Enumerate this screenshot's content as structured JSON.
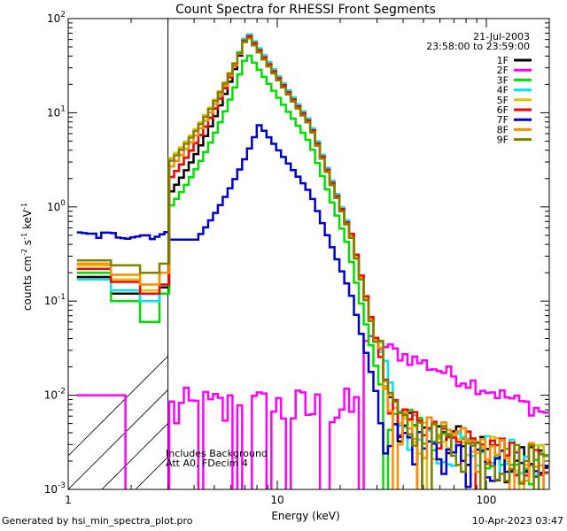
{
  "chart_data": {
    "type": "line",
    "title": "Count Spectra for RHESSI Front Segments",
    "xlabel": "Energy (keV)",
    "ylabel": "counts cm-2 s-1 keV-1",
    "xscale": "log",
    "yscale": "log",
    "xlim": [
      1,
      200
    ],
    "ylim": [
      0.001,
      100
    ],
    "x_ticks": [
      {
        "value": 1,
        "label": "1"
      },
      {
        "value": 10,
        "label": "10"
      },
      {
        "value": 100,
        "label": "100"
      }
    ],
    "y_ticks": [
      {
        "value": 0.001,
        "base": "10",
        "exp": "-3"
      },
      {
        "value": 0.01,
        "base": "10",
        "exp": "-2"
      },
      {
        "value": 0.1,
        "base": "10",
        "exp": "-1"
      },
      {
        "value": 1,
        "base": "10",
        "exp": "0"
      },
      {
        "value": 10,
        "base": "10",
        "exp": "1"
      },
      {
        "value": 100,
        "base": "10",
        "exp": "2"
      }
    ],
    "date": "21-Jul-2003",
    "time_range": "23:58:00 to 23:59:00",
    "hatched_region": [
      1,
      3
    ],
    "annotations": [
      "Includes Background",
      "Att A0, FDecim 4"
    ],
    "legend_position": "top-right",
    "series": [
      {
        "name": "1F",
        "color": "#000000",
        "y_lo": 0.07,
        "ylow": [
          0.18,
          0.12,
          0.1,
          0.14
        ],
        "peak_mult": 1.0,
        "high_mult": 1.0
      },
      {
        "name": "2F",
        "color": "#ff00ff",
        "kind": "background"
      },
      {
        "name": "3F",
        "color": "#00e000",
        "y_lo": 0.05,
        "ylow": [
          0.2,
          0.1,
          0.06,
          0.12
        ],
        "peak_mult": 0.62,
        "high_mult": 0.85
      },
      {
        "name": "4F",
        "color": "#00e5ee",
        "y_lo": 0.1,
        "ylow": [
          0.17,
          0.13,
          0.1,
          0.15
        ],
        "peak_mult": 1.05,
        "high_mult": 1.0
      },
      {
        "name": "5F",
        "color": "#e0c000",
        "y_lo": 0.16,
        "ylow": [
          0.24,
          0.17,
          0.13,
          0.2
        ],
        "peak_mult": 0.95,
        "high_mult": 1.05
      },
      {
        "name": "6F",
        "color": "#ff0000",
        "y_lo": 0.1,
        "ylow": [
          0.22,
          0.16,
          0.12,
          0.15
        ],
        "peak_mult": 1.0,
        "high_mult": 1.05
      },
      {
        "name": "7F",
        "color": "#0000cc",
        "kind": "rear"
      },
      {
        "name": "8F",
        "color": "#ff8c00",
        "y_lo": 0.13,
        "ylow": [
          0.25,
          0.19,
          0.15,
          0.2
        ],
        "peak_mult": 0.95,
        "high_mult": 1.0
      },
      {
        "name": "9F",
        "color": "#808000",
        "y_lo": 0.15,
        "ylow": [
          0.27,
          0.24,
          0.2,
          0.25
        ],
        "peak_mult": 0.95,
        "high_mult": 1.0
      }
    ]
  },
  "footer": {
    "left": "Generated by hsi_min_spectra_plot.pro",
    "right": "10-Apr-2023 03:47"
  }
}
